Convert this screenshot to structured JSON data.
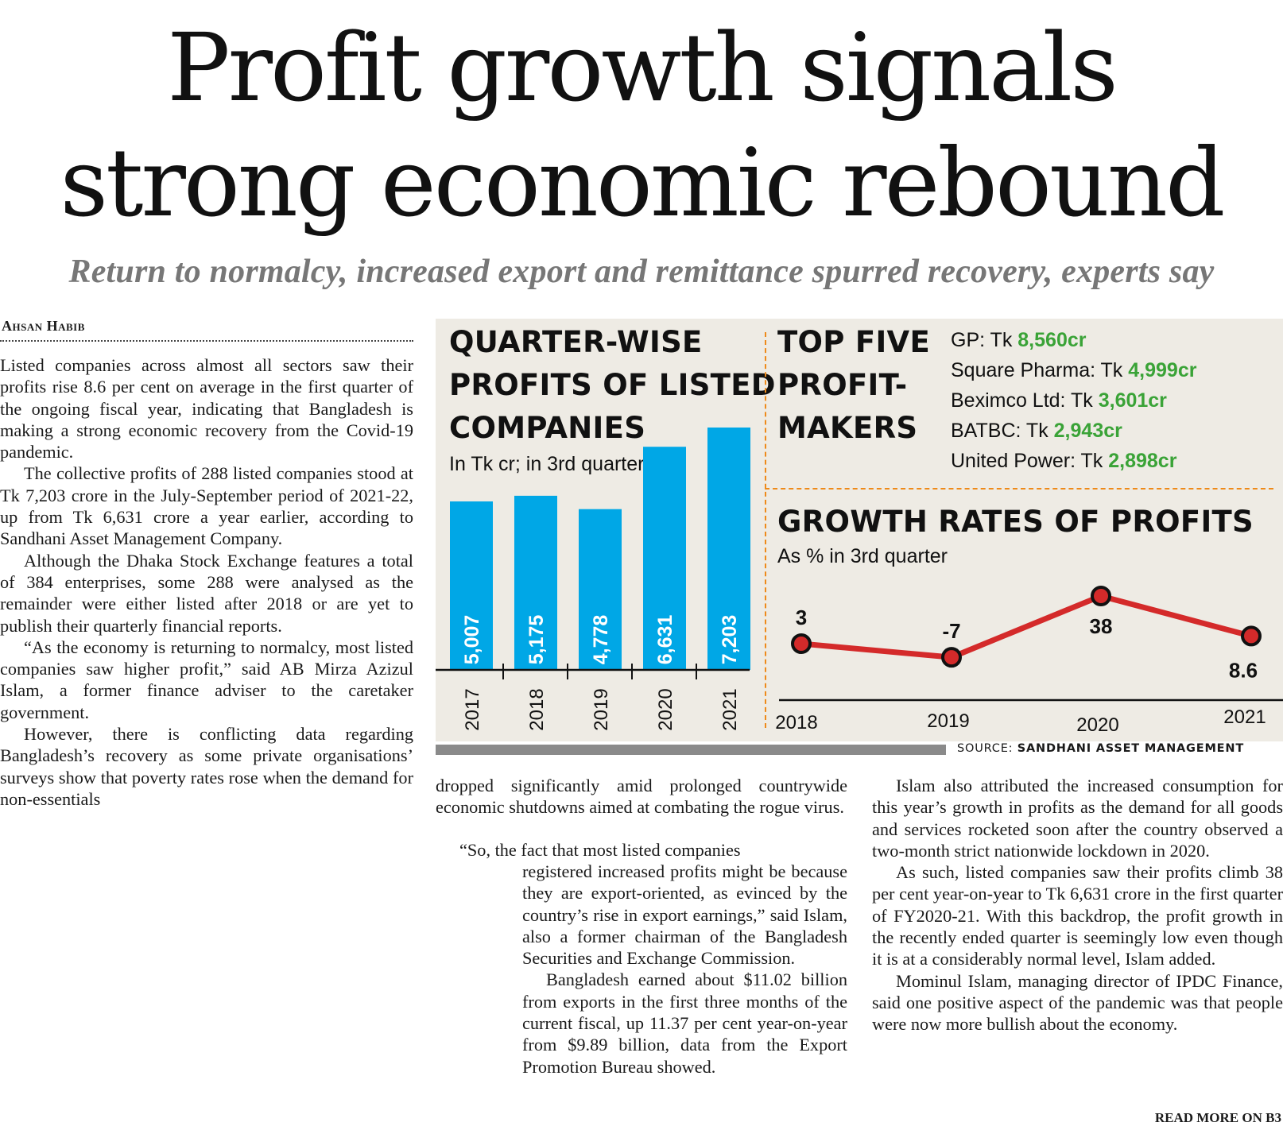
{
  "headline": {
    "line1": "Profit growth signals",
    "line2": "strong economic rebound"
  },
  "subhead": "Return to normalcy, increased export and remittance spurred recovery, experts say",
  "byline": "Ahsan Habib",
  "col1": [
    "Listed companies across almost all sectors saw their profits rise 8.6 per cent on average in the first quarter of the ongoing fiscal year, indicating that Bangladesh is making a strong economic recovery from the Covid-19 pandemic.",
    "The collective profits of 288 listed companies stood at Tk 7,203 crore in the July-September period of 2021-22, up from Tk 6,631 crore a year earlier, according to Sandhani Asset Management Company.",
    "Although the Dhaka Stock Exchange features a total of 384 enterprises, some 288 were analysed as the remainder were either listed after 2018 or are yet to publish their quarterly financial reports.",
    "“As the economy is returning to normalcy, most listed companies saw higher profit,” said AB Mirza Azizul Islam, a former finance adviser to the caretaker government.",
    "However, there is conflicting data regarding Bangladesh’s recovery as some private organisations’ surveys show that poverty rates rose when the demand for non-essentials"
  ],
  "col2_continued": "dropped significantly amid prolonged countrywide economic shutdowns aimed at combating the rogue virus.",
  "col2_quote_start": "“So, the fact that most listed companies",
  "col2": [
    "registered increased profits might be because they are export-oriented, as evinced by the country’s rise in export earnings,” said Islam, also a former chairman of the Bangladesh Securities and Exchange Commission.",
    "Bangladesh earned about $11.02 billion from exports in the first three months of the current fiscal, up 11.37 per cent year-on-year from $9.89 billion, data from the Export Promotion Bureau showed."
  ],
  "col3": [
    "Islam also attributed the increased consumption for this year’s growth in profits as the demand for all goods and services rocketed soon after the country observed a two-month strict nationwide lockdown in 2020.",
    "As such, listed companies saw their profits climb 38 per cent year-on-year to Tk 6,631 crore in the first quarter of FY2020-21. With this backdrop, the profit growth in the recently ended quarter is seemingly low even though it is at a considerably normal level, Islam added.",
    "Mominul Islam, managing director of IPDC Finance, said one positive aspect of the pandemic was that people were now more bullish about the economy."
  ],
  "read_more": "READ MORE ON B3",
  "graphic": {
    "bar_title": [
      "QUARTER-WISE",
      "PROFITS OF LISTED",
      "COMPANIES"
    ],
    "bar_subtitle": "In Tk cr; in 3rd quarter",
    "top_title": [
      "TOP FIVE",
      "PROFIT-",
      "MAKERS"
    ],
    "top_five": [
      {
        "name": "GP: Tk ",
        "value": "8,560cr"
      },
      {
        "name": "Square Pharma: Tk ",
        "value": "4,999cr"
      },
      {
        "name": "Beximco Ltd: Tk ",
        "value": "3,601cr"
      },
      {
        "name": "BATBC: Tk ",
        "value": "2,943cr"
      },
      {
        "name": "United Power: Tk ",
        "value": "2,898cr"
      }
    ],
    "line_title": "GROWTH RATES OF PROFITS",
    "line_subtitle": "As % in 3rd quarter",
    "source_prefix": "SOURCE: ",
    "source_name": "SANDHANI ASSET MANAGEMENT",
    "colors": {
      "bar": "#00a7e6",
      "line": "#d42a2a",
      "accent_green": "#3aa337",
      "divider": "#ee8a1a",
      "panel": "#eeebe4"
    }
  },
  "chart_data": [
    {
      "type": "bar",
      "title": "QUARTER-WISE PROFITS OF LISTED COMPANIES",
      "subtitle": "In Tk cr; in 3rd quarter",
      "categories": [
        "2017",
        "2018",
        "2019",
        "2020",
        "2021"
      ],
      "values": [
        5007,
        5175,
        4778,
        6631,
        7203
      ],
      "value_labels": [
        "5,007",
        "5,175",
        "4,778",
        "6,631",
        "7,203"
      ],
      "ylim": [
        0,
        7800
      ],
      "grid": false
    },
    {
      "type": "line",
      "title": "GROWTH RATES OF PROFITS",
      "subtitle": "As % in 3rd quarter",
      "x": [
        "2018",
        "2019",
        "2020",
        "2021"
      ],
      "values": [
        3,
        -7,
        38,
        8.6
      ],
      "value_labels": [
        "3",
        "-7",
        "38",
        "8.6"
      ],
      "ylim": [
        -20,
        50
      ],
      "grid": false
    }
  ]
}
